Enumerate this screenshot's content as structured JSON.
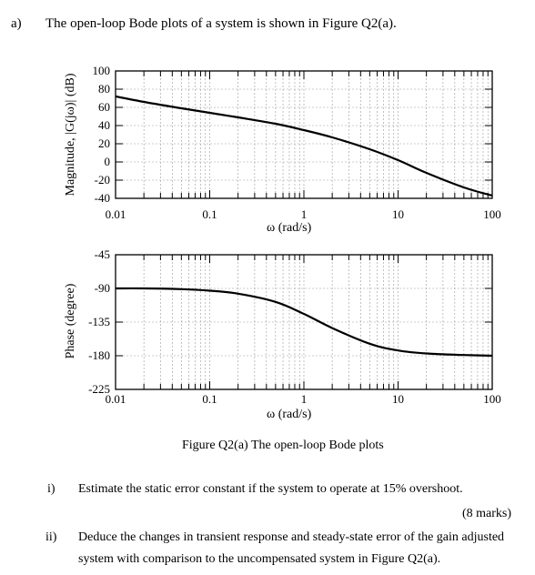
{
  "part_a": {
    "label": "a)",
    "text": "The open-loop Bode plots of a system is shown in Figure Q2(a)."
  },
  "figure_caption": "Figure Q2(a) The open-loop Bode plots",
  "questions": [
    {
      "label": "i)",
      "text": "Estimate the static error constant if the system to operate at 15% overshoot.",
      "marks": "(8 marks)"
    },
    {
      "label": "ii)",
      "line1": "Deduce the changes in transient response and steady-state error of the gain adjusted",
      "line2": "system with comparison to the uncompensated system in Figure Q2(a)."
    }
  ],
  "chart_data": [
    {
      "type": "line",
      "xscale": "log",
      "xlabel": "ω (rad/s)",
      "ylabel": "Magnitude, |G(jω)| (dB)",
      "x_ticks": [
        "0.01",
        "0.1",
        "1",
        "10",
        "100"
      ],
      "y_ticks": [
        "100",
        "80",
        "60",
        "40",
        "20",
        "0",
        "-20",
        "-40"
      ],
      "xlim": [
        0.01,
        100
      ],
      "ylim": [
        -40,
        100
      ],
      "grid": true,
      "series": [
        {
          "x": [
            0.01,
            0.02,
            0.05,
            0.1,
            0.2,
            0.5,
            1,
            2,
            5,
            10,
            20,
            50,
            100
          ],
          "y": [
            72,
            66,
            59,
            54,
            49,
            42,
            35,
            27,
            14,
            2,
            -12,
            -28,
            -37
          ]
        }
      ]
    },
    {
      "type": "line",
      "xscale": "log",
      "xlabel": "ω (rad/s)",
      "ylabel": "Phase (degree)",
      "x_ticks": [
        "0.01",
        "0.1",
        "1",
        "10",
        "100"
      ],
      "y_ticks": [
        "-45",
        "-90",
        "-135",
        "-180",
        "-225"
      ],
      "xlim": [
        0.01,
        100
      ],
      "ylim": [
        -225,
        -45
      ],
      "grid": true,
      "series": [
        {
          "x": [
            0.01,
            0.02,
            0.05,
            0.1,
            0.2,
            0.5,
            1,
            2,
            5,
            10,
            20,
            50,
            100
          ],
          "y": [
            -90,
            -90,
            -91,
            -93,
            -97,
            -108,
            -124,
            -143,
            -164,
            -173,
            -177,
            -179,
            -180
          ]
        }
      ]
    }
  ]
}
